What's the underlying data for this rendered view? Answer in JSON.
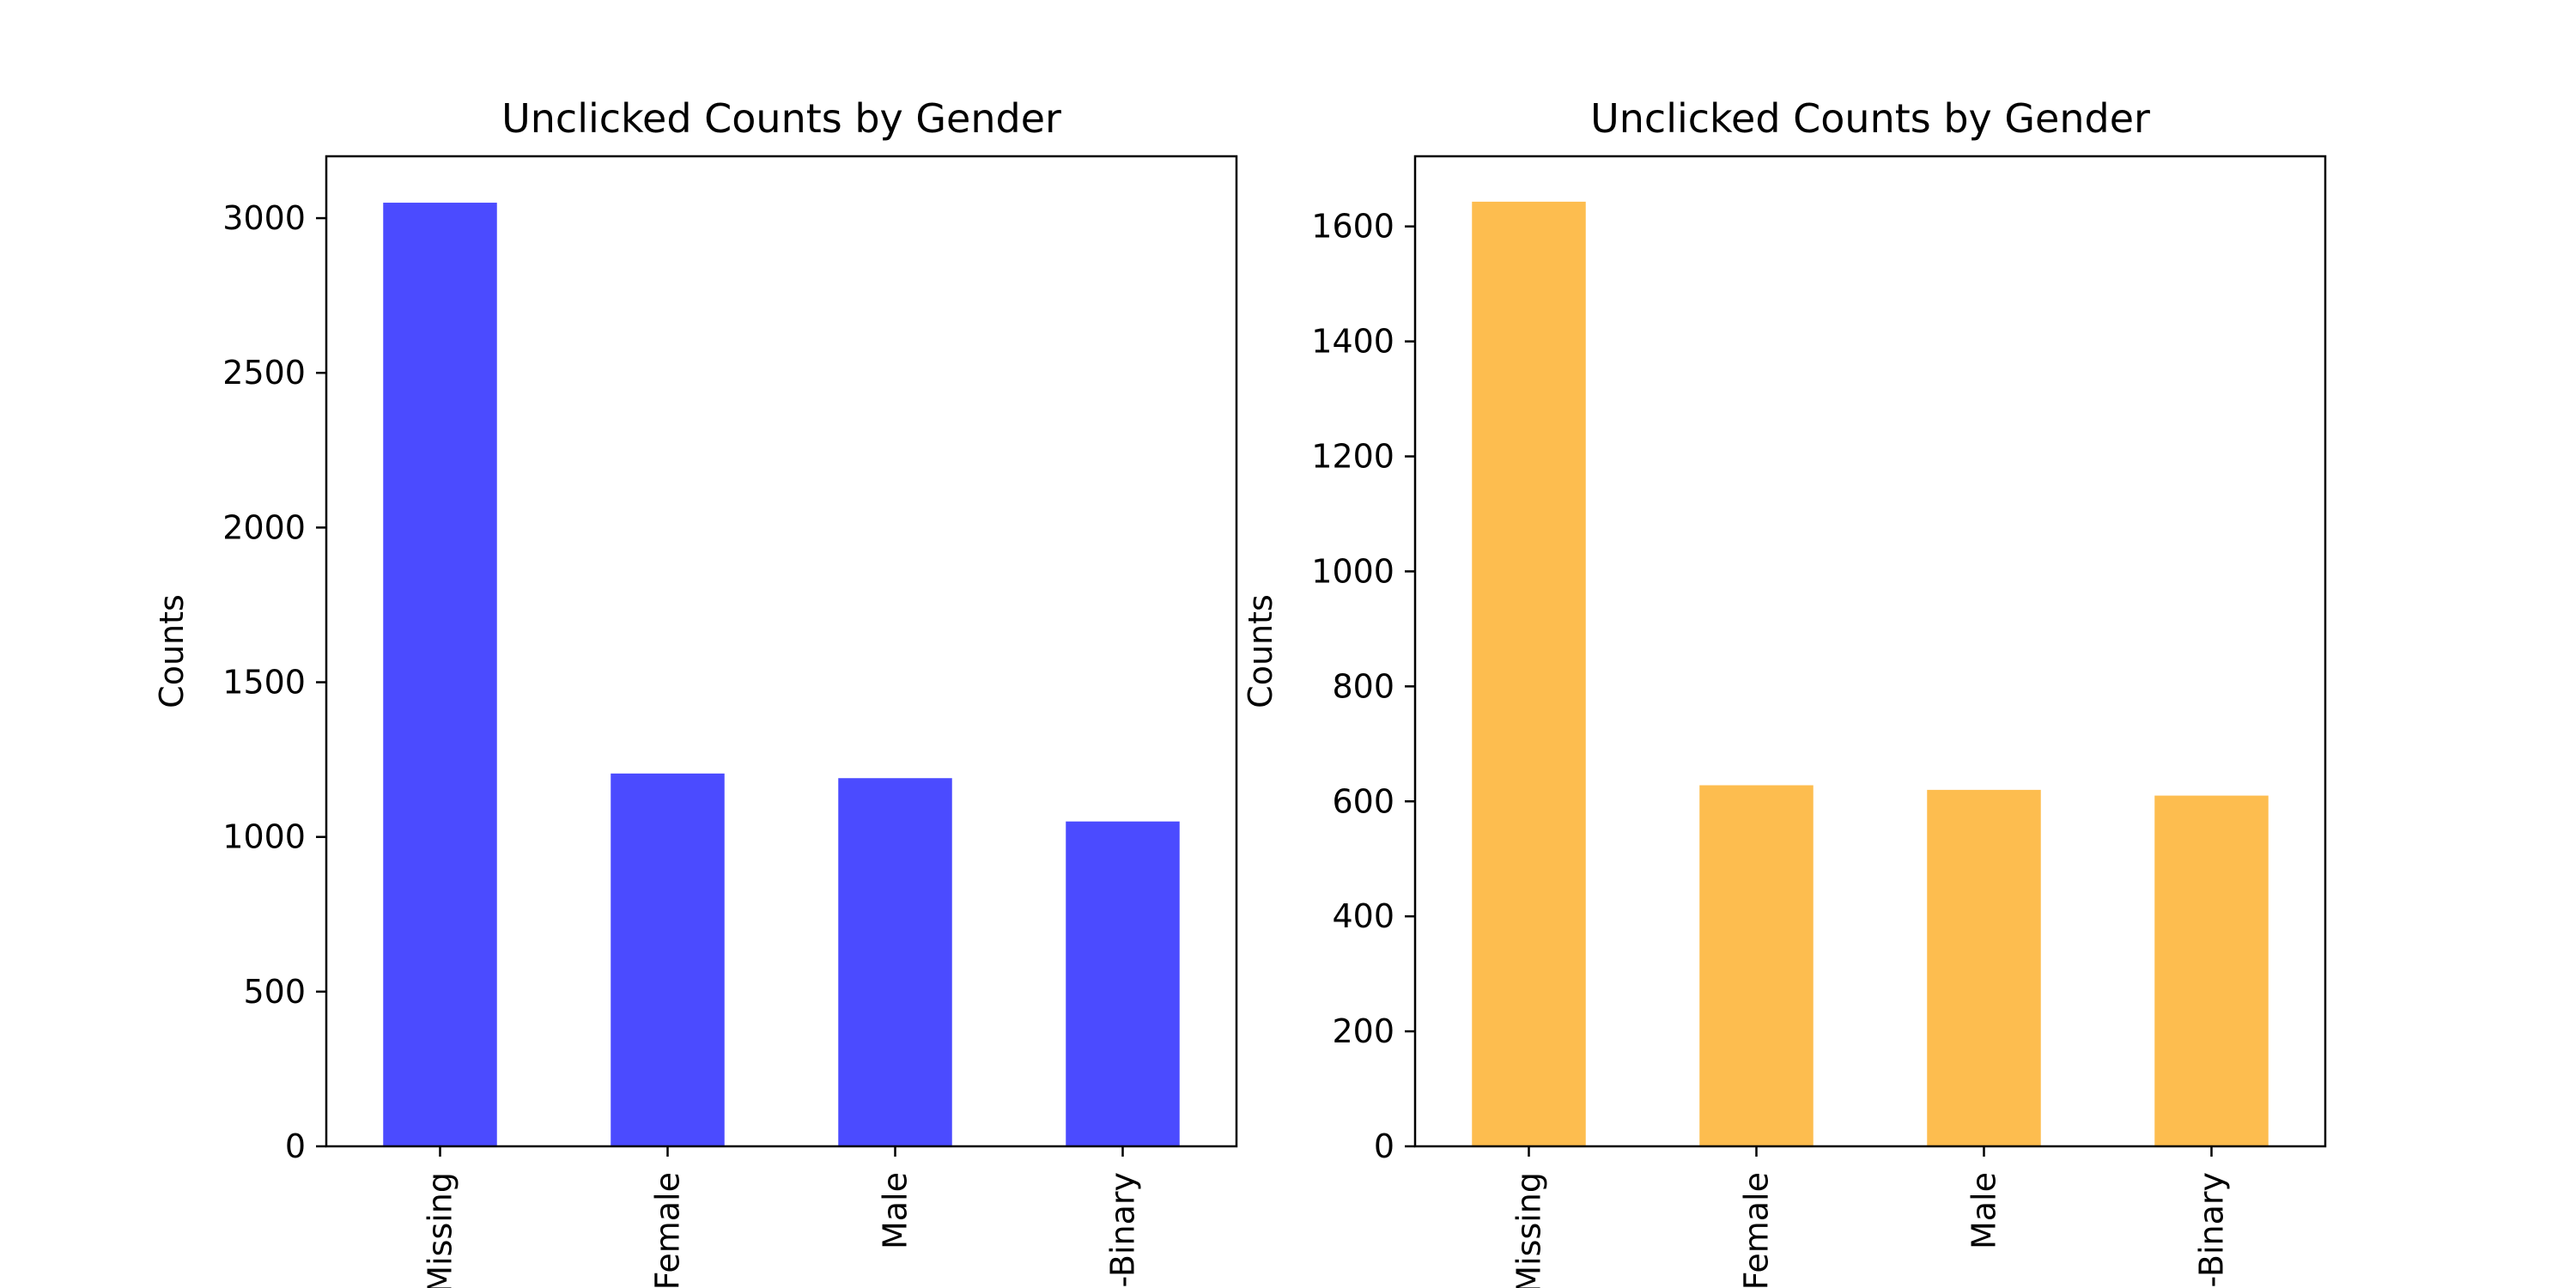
{
  "chart_data": [
    {
      "type": "bar",
      "title": "Unclicked Counts by Gender",
      "xlabel": "",
      "ylabel": "Counts",
      "categories": [
        "Missing",
        "Female",
        "Male",
        "Non-Binary"
      ],
      "values": [
        3050,
        1205,
        1190,
        1050
      ],
      "ylim": [
        0,
        3200
      ],
      "yticks": [
        0,
        500,
        1000,
        1500,
        2000,
        2500,
        3000
      ],
      "color": "#4b4bff",
      "grid": false,
      "legend": false
    },
    {
      "type": "bar",
      "title": "Unclicked Counts by Gender",
      "xlabel": "",
      "ylabel": "Counts",
      "categories": [
        "Missing",
        "Female",
        "Male",
        "Non-Binary"
      ],
      "values": [
        1643,
        628,
        620,
        610
      ],
      "ylim": [
        0,
        1722
      ],
      "yticks": [
        0,
        200,
        400,
        600,
        800,
        1000,
        1200,
        1400,
        1600
      ],
      "color": "#fdbd4f",
      "grid": false,
      "legend": false
    }
  ]
}
